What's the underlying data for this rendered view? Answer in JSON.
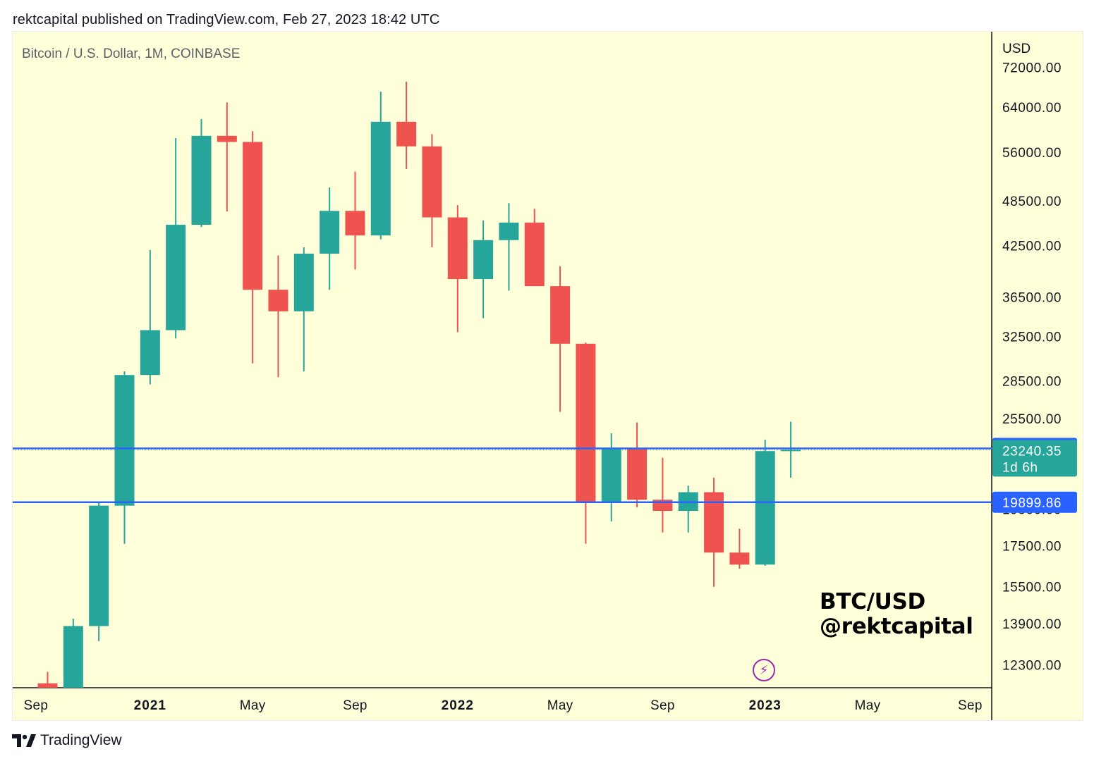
{
  "header": {
    "published_text": "rektcapital published on TradingView.com, Feb 27, 2023 18:42 UTC"
  },
  "chart": {
    "symbol_title": "Bitcoin / U.S. Dollar, 1M, COINBASE",
    "watermark_line1": "BTC/USD",
    "watermark_line2": "@rektcapital",
    "lightning_icon": "lightning-icon"
  },
  "footer": {
    "logo_text": "TradingView",
    "logo_icon": "tradingview-logo-icon"
  },
  "colors": {
    "background": "#ffffd9",
    "up": "#26a69a",
    "down": "#ef5350",
    "hline": "#2962ff",
    "axis_text": "#131722"
  },
  "chart_data": {
    "type": "candlestick",
    "title": "Bitcoin / U.S. Dollar, 1M, COINBASE",
    "y_scale": "log",
    "ylim": [
      11500,
      80000
    ],
    "y_axis_unit": "USD",
    "y_ticks": [
      "72000.00",
      "64000.00",
      "56000.00",
      "48500.00",
      "42500.00",
      "36500.00",
      "32500.00",
      "28500.00",
      "25500.00",
      "19500.00",
      "17500.00",
      "15500.00",
      "13900.00",
      "12300.00"
    ],
    "x_ticks": [
      {
        "label": "Sep",
        "bold": false
      },
      {
        "label": "2021",
        "bold": true
      },
      {
        "label": "May",
        "bold": false
      },
      {
        "label": "Sep",
        "bold": false
      },
      {
        "label": "2022",
        "bold": true
      },
      {
        "label": "May",
        "bold": false
      },
      {
        "label": "Sep",
        "bold": false
      },
      {
        "label": "2023",
        "bold": true
      },
      {
        "label": "May",
        "bold": false
      },
      {
        "label": "Sep",
        "bold": false
      }
    ],
    "candles": [
      {
        "month": "2020-09",
        "open": 11650,
        "high": 12050,
        "low": 9900,
        "close": 10780
      },
      {
        "month": "2020-10",
        "open": 10780,
        "high": 14100,
        "low": 10500,
        "close": 13800
      },
      {
        "month": "2020-11",
        "open": 13800,
        "high": 19900,
        "low": 13200,
        "close": 19700
      },
      {
        "month": "2020-12",
        "open": 19700,
        "high": 29300,
        "low": 17600,
        "close": 28990
      },
      {
        "month": "2021-01",
        "open": 28990,
        "high": 41950,
        "low": 28200,
        "close": 33100
      },
      {
        "month": "2021-02",
        "open": 33100,
        "high": 58400,
        "low": 32300,
        "close": 45200
      },
      {
        "month": "2021-03",
        "open": 45200,
        "high": 61800,
        "low": 44900,
        "close": 58800
      },
      {
        "month": "2021-04",
        "open": 58800,
        "high": 64900,
        "low": 47000,
        "close": 57750
      },
      {
        "month": "2021-05",
        "open": 57750,
        "high": 59600,
        "low": 30000,
        "close": 37300
      },
      {
        "month": "2021-06",
        "open": 37300,
        "high": 41300,
        "low": 28800,
        "close": 35000
      },
      {
        "month": "2021-07",
        "open": 35000,
        "high": 42300,
        "low": 29300,
        "close": 41500
      },
      {
        "month": "2021-08",
        "open": 41500,
        "high": 50500,
        "low": 37300,
        "close": 47100
      },
      {
        "month": "2021-09",
        "open": 47100,
        "high": 52900,
        "low": 39600,
        "close": 43800
      },
      {
        "month": "2021-10",
        "open": 43800,
        "high": 66999,
        "low": 43300,
        "close": 61300
      },
      {
        "month": "2021-11",
        "open": 61300,
        "high": 69000,
        "low": 53300,
        "close": 57000
      },
      {
        "month": "2021-12",
        "open": 57000,
        "high": 59100,
        "low": 42300,
        "close": 46200
      },
      {
        "month": "2022-01",
        "open": 46200,
        "high": 47900,
        "low": 32900,
        "close": 38500
      },
      {
        "month": "2022-02",
        "open": 38500,
        "high": 45800,
        "low": 34300,
        "close": 43200
      },
      {
        "month": "2022-03",
        "open": 43200,
        "high": 48200,
        "low": 37200,
        "close": 45500
      },
      {
        "month": "2022-04",
        "open": 45500,
        "high": 47400,
        "low": 37700,
        "close": 37700
      },
      {
        "month": "2022-05",
        "open": 37700,
        "high": 40000,
        "low": 26000,
        "close": 31800
      },
      {
        "month": "2022-06",
        "open": 31800,
        "high": 31900,
        "low": 17600,
        "close": 19950
      },
      {
        "month": "2022-07",
        "open": 19950,
        "high": 24400,
        "low": 18800,
        "close": 23300
      },
      {
        "month": "2022-08",
        "open": 23300,
        "high": 25200,
        "low": 19600,
        "close": 20050
      },
      {
        "month": "2022-09",
        "open": 20050,
        "high": 22700,
        "low": 18200,
        "close": 19400
      },
      {
        "month": "2022-10",
        "open": 19400,
        "high": 20900,
        "low": 18200,
        "close": 20500
      },
      {
        "month": "2022-11",
        "open": 20500,
        "high": 21400,
        "low": 15500,
        "close": 17150
      },
      {
        "month": "2022-12",
        "open": 17150,
        "high": 18400,
        "low": 16350,
        "close": 16550
      },
      {
        "month": "2023-01",
        "open": 16550,
        "high": 23950,
        "low": 16500,
        "close": 23150
      },
      {
        "month": "2023-02",
        "open": 23150,
        "high": 25250,
        "low": 21400,
        "close": 23240
      }
    ],
    "horizontal_lines": [
      {
        "value": 23335.82,
        "label": "23335.82"
      },
      {
        "value": 19899.86,
        "label": "19899.86"
      }
    ],
    "last_price": {
      "value": 23240.35,
      "label": "23240.35",
      "countdown": "1d 6h"
    }
  }
}
